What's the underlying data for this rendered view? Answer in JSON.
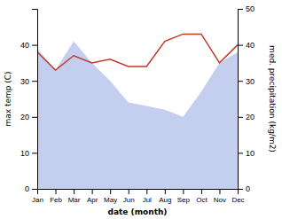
{
  "chart_data": {
    "type": "line",
    "categories": [
      "Jan",
      "Feb",
      "Mar",
      "Apr",
      "May",
      "Jun",
      "Jul",
      "Aug",
      "Sep",
      "Oct",
      "Nov",
      "Dec"
    ],
    "series": [
      {
        "type": "area",
        "color": "#b0bee8",
        "values": [
          39,
          33,
          41,
          35,
          30,
          24,
          23,
          22,
          20,
          27,
          35,
          38
        ]
      },
      {
        "type": "line",
        "color": "#c0392b",
        "axis": "y2",
        "values": [
          38,
          33,
          37,
          35,
          36,
          34,
          34,
          41,
          43,
          43,
          35,
          40
        ]
      }
    ],
    "xlabel": "date (month)",
    "ylabel": "max temp (C)",
    "y2label": "med. precipitation (kg/m2)",
    "ylim": [
      0,
      50
    ],
    "yticks": [
      0,
      10,
      20,
      30,
      40
    ],
    "y2lim": [
      0,
      50
    ],
    "y2ticks": [
      0,
      10,
      20,
      30,
      40,
      50
    ],
    "grid": false
  }
}
